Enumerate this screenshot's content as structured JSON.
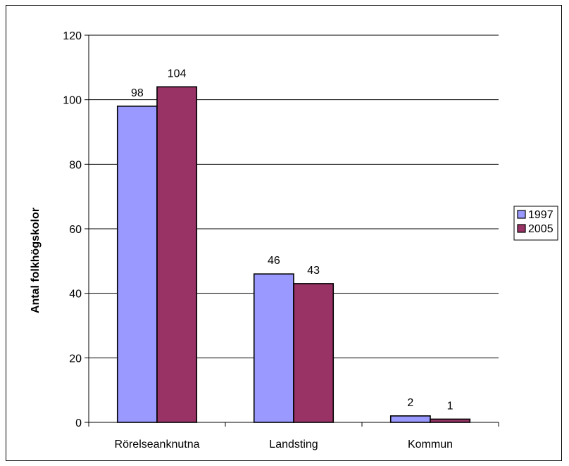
{
  "chart_data": {
    "type": "bar",
    "title": "",
    "xlabel": "",
    "ylabel": "Antal folkhögskolor",
    "categories": [
      "Rörelseanknutna",
      "Landsting",
      "Kommun"
    ],
    "series": [
      {
        "name": "1997",
        "values": [
          98,
          46,
          2
        ],
        "color": "#9999ff"
      },
      {
        "name": "2005",
        "values": [
          104,
          43,
          1
        ],
        "color": "#993366"
      }
    ],
    "ylim": [
      0,
      120
    ],
    "yticks": [
      0,
      20,
      40,
      60,
      80,
      100,
      120
    ],
    "grid": true,
    "legend": "right",
    "data_labels": true
  }
}
